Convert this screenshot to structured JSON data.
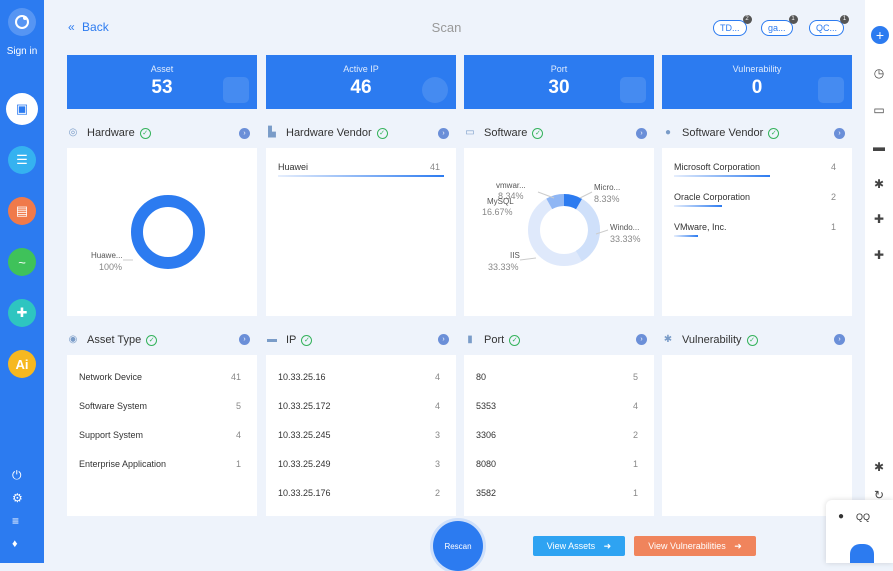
{
  "sidebar": {
    "signin": "Sign in"
  },
  "header": {
    "back": "Back",
    "title": "Scan",
    "chips": [
      {
        "label": "TD...",
        "count": "2"
      },
      {
        "label": "ga...",
        "count": "1"
      },
      {
        "label": "QC...",
        "count": "1"
      }
    ]
  },
  "stats": [
    {
      "label": "Asset",
      "value": "53"
    },
    {
      "label": "Active IP",
      "value": "46"
    },
    {
      "label": "Port",
      "value": "30"
    },
    {
      "label": "Vulnerability",
      "value": "0"
    }
  ],
  "sections": {
    "hardware": "Hardware",
    "hardware_vendor": "Hardware Vendor",
    "software": "Software",
    "software_vendor": "Software Vendor",
    "asset_type": "Asset Type",
    "ip": "IP",
    "port": "Port",
    "vulnerability": "Vulnerability"
  },
  "hardware_chart": {
    "label": "Huawe...",
    "pct": "100%"
  },
  "hardware_vendor": [
    {
      "name": "Huawei",
      "count": "41"
    }
  ],
  "software_chart": {
    "segments": [
      {
        "label": "vmwar...",
        "pct": "8.34%"
      },
      {
        "label": "Micro...",
        "pct": "8.33%"
      },
      {
        "label": "MySQL",
        "pct": "16.67%"
      },
      {
        "label": "Windo...",
        "pct": "33.33%"
      },
      {
        "label": "IIS",
        "pct": "33.33%"
      }
    ]
  },
  "software_vendor": [
    {
      "name": "Microsoft Corporation",
      "count": "4"
    },
    {
      "name": "Oracle Corporation",
      "count": "2"
    },
    {
      "name": "VMware, Inc.",
      "count": "1"
    }
  ],
  "asset_type": [
    {
      "name": "Network Device",
      "count": "41"
    },
    {
      "name": "Software System",
      "count": "5"
    },
    {
      "name": "Support System",
      "count": "4"
    },
    {
      "name": "Enterprise Application",
      "count": "1"
    }
  ],
  "ip": [
    {
      "name": "10.33.25.16",
      "count": "4"
    },
    {
      "name": "10.33.25.172",
      "count": "4"
    },
    {
      "name": "10.33.25.245",
      "count": "3"
    },
    {
      "name": "10.33.25.249",
      "count": "3"
    },
    {
      "name": "10.33.25.176",
      "count": "2"
    }
  ],
  "port": [
    {
      "name": "80",
      "count": "5"
    },
    {
      "name": "5353",
      "count": "4"
    },
    {
      "name": "3306",
      "count": "2"
    },
    {
      "name": "8080",
      "count": "1"
    },
    {
      "name": "3582",
      "count": "1"
    }
  ],
  "actions": {
    "rescan": "Rescan",
    "view_assets": "View Assets",
    "view_vulns": "View Vulnerabilities"
  },
  "qq": {
    "label": "QQ"
  },
  "colors": {
    "primary": "#2c7bf0",
    "orange": "#f0845c",
    "blue_btn": "#2ea3f2",
    "green": "#35b35c"
  }
}
